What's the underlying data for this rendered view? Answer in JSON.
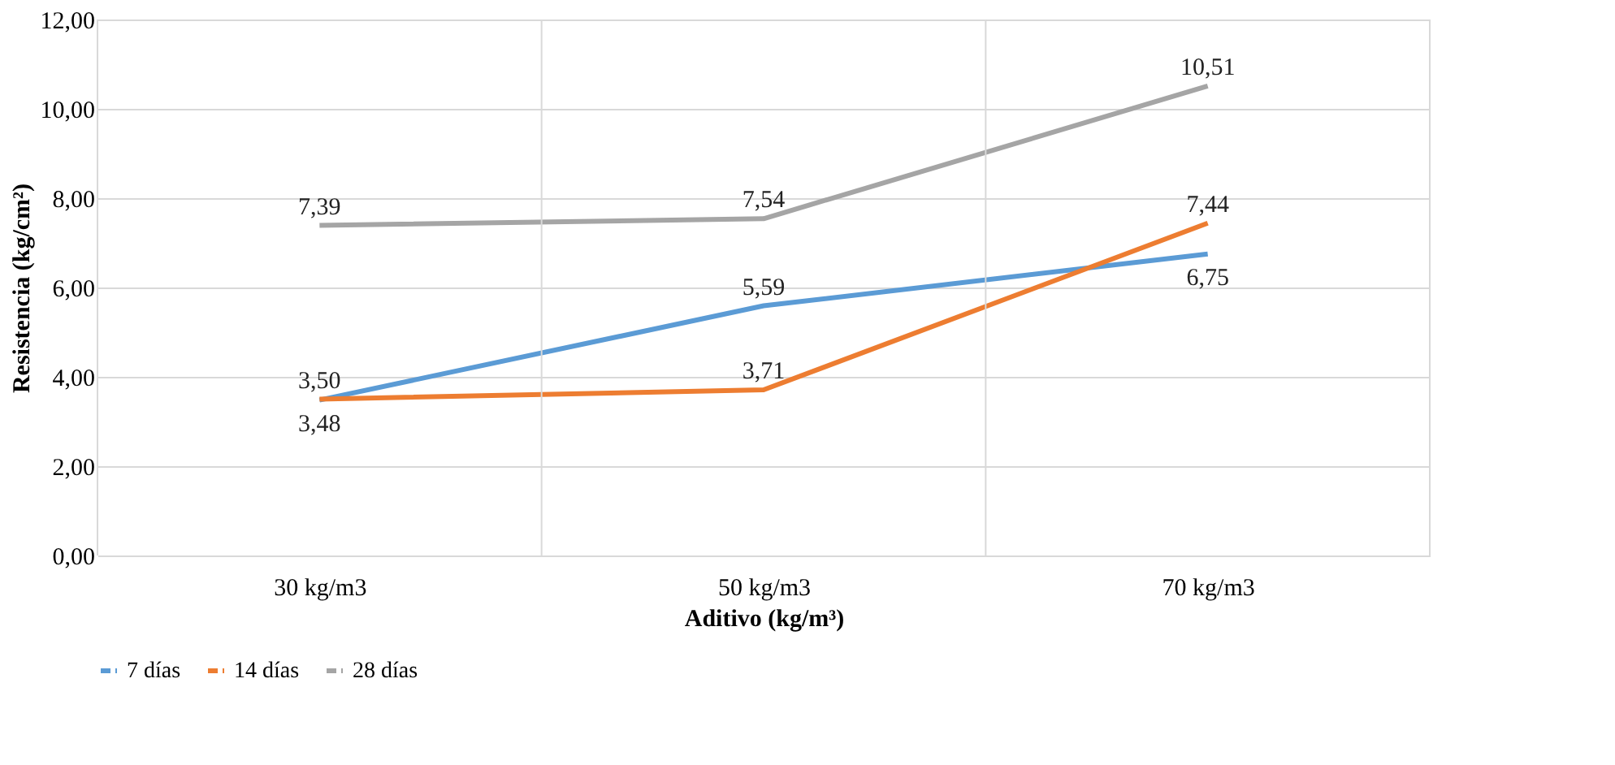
{
  "chart_data": {
    "type": "line",
    "xlabel": "Aditivo (kg/m³)",
    "ylabel": "Resistencia (kg/cm²)",
    "categories": [
      "30 kg/m3",
      "50 kg/m3",
      "70 kg/m3"
    ],
    "series": [
      {
        "name": "7 días",
        "color": "#5b9bd5",
        "values": [
          3.48,
          5.59,
          6.75
        ],
        "value_labels": [
          "3,48",
          "5,59",
          "6,75"
        ]
      },
      {
        "name": "14 días",
        "color": "#ed7d31",
        "values": [
          3.5,
          3.71,
          7.44
        ],
        "value_labels": [
          "3,50",
          "3,71",
          "7,44"
        ]
      },
      {
        "name": "28 días",
        "color": "#a5a5a5",
        "values": [
          7.39,
          7.54,
          10.51
        ],
        "value_labels": [
          "7,39",
          "7,54",
          "10,51"
        ]
      }
    ],
    "ylim": [
      0,
      12
    ],
    "yticks": [
      {
        "value": 0,
        "label": "0,00"
      },
      {
        "value": 2,
        "label": "2,00"
      },
      {
        "value": 4,
        "label": "4,00"
      },
      {
        "value": 6,
        "label": "6,00"
      },
      {
        "value": 8,
        "label": "8,00"
      },
      {
        "value": 10,
        "label": "10,00"
      },
      {
        "value": 12,
        "label": "12,00"
      }
    ],
    "grid": true,
    "legend": "bottom",
    "marker": "none",
    "line_style": "solid"
  }
}
